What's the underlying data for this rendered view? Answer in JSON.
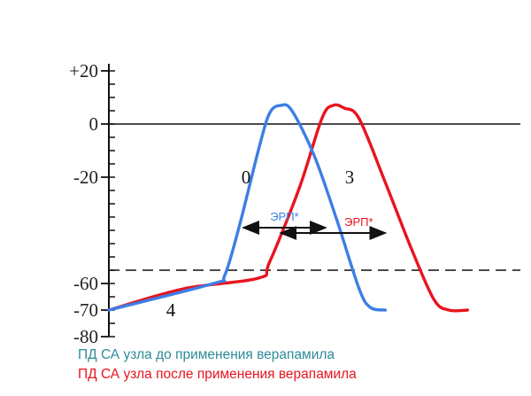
{
  "chart_data": {
    "type": "line",
    "title": "",
    "xlabel": "",
    "ylabel": "",
    "ylim": [
      -80,
      20
    ],
    "xlim": [
      0,
      100
    ],
    "y_ticks": [
      20,
      0,
      -20,
      -60,
      -70,
      -80
    ],
    "y_tick_labels": [
      "+20",
      "0",
      "-20",
      "-60",
      "-70",
      "-80"
    ],
    "grid": false,
    "reference_lines": [
      {
        "y": 0,
        "style": "solid"
      },
      {
        "y": -55,
        "style": "dashed"
      }
    ],
    "phase_labels": [
      "0",
      "3",
      "4"
    ],
    "series": [
      {
        "name": "ПД СА узла до применения верапамила",
        "color": "#3d7ee6",
        "points": [
          [
            0,
            -70
          ],
          [
            28,
            -60
          ],
          [
            31,
            -57
          ],
          [
            35,
            -38
          ],
          [
            40,
            -10
          ],
          [
            43,
            4
          ],
          [
            46,
            7
          ],
          [
            49,
            5
          ],
          [
            55,
            -12
          ],
          [
            61,
            -36
          ],
          [
            67,
            -62
          ],
          [
            70,
            -69
          ],
          [
            74,
            -70
          ]
        ]
      },
      {
        "name": "ПД СА узла после применения верапамила",
        "color": "#e8141e",
        "points": [
          [
            0,
            -70
          ],
          [
            20,
            -62
          ],
          [
            40,
            -58
          ],
          [
            43,
            -52
          ],
          [
            51,
            -24
          ],
          [
            57,
            2
          ],
          [
            60,
            7
          ],
          [
            63,
            6
          ],
          [
            67,
            2
          ],
          [
            74,
            -22
          ],
          [
            81,
            -47
          ],
          [
            87,
            -66
          ],
          [
            91,
            -70
          ],
          [
            96,
            -70
          ]
        ]
      }
    ],
    "annotations": [
      {
        "label": "ЭРП*",
        "color": "#3d7ee6",
        "x_from": 36,
        "x_to": 58,
        "y": -39
      },
      {
        "label": "ЭРП*",
        "color": "#e8141e",
        "x_from": 46,
        "x_to": 74,
        "y": -41
      }
    ]
  },
  "legend": [
    {
      "text": "ПД СА узла до применения верапамила",
      "color": "#2e8b99"
    },
    {
      "text": "ПД СА узла после применения верапамила",
      "color": "#e8141e"
    }
  ]
}
